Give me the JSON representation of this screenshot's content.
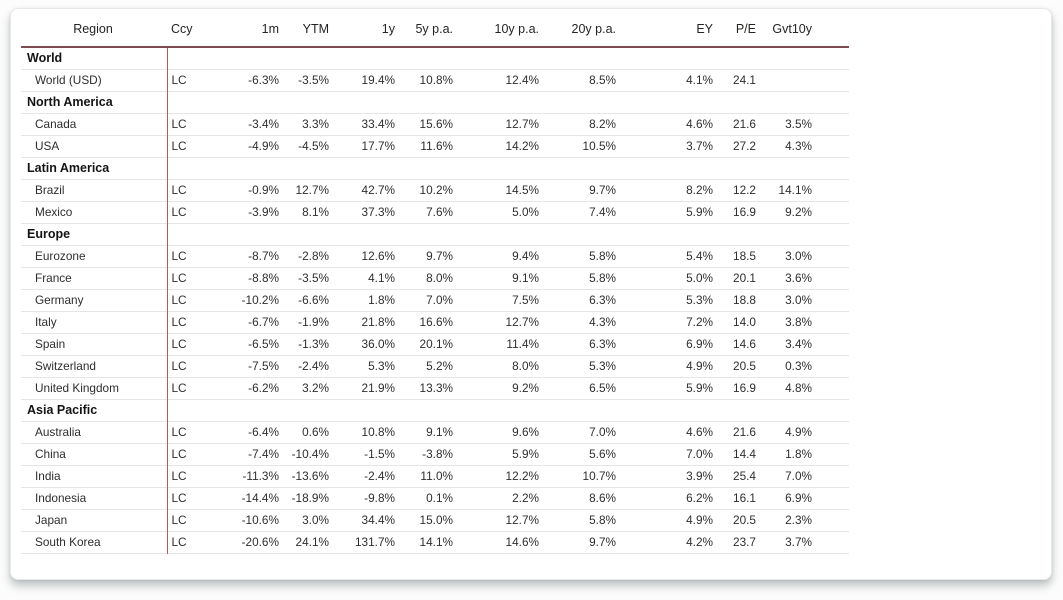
{
  "colors": {
    "header_underline": "#7f4b53",
    "region_divider_line": "#a85e66",
    "row_separator": "#e5e5e5",
    "card_background": "#ffffff"
  },
  "table": {
    "columns": [
      {
        "key": "region",
        "label": "Region"
      },
      {
        "key": "ccy",
        "label": "Ccy"
      },
      {
        "key": "m1",
        "label": "1m"
      },
      {
        "key": "ytm",
        "label": "YTM"
      },
      {
        "key": "y1",
        "label": "1y"
      },
      {
        "key": "y5",
        "label": "5y p.a."
      },
      {
        "key": "y10",
        "label": "10y p.a."
      },
      {
        "key": "y20",
        "label": "20y p.a."
      },
      {
        "key": "ey",
        "label": "EY"
      },
      {
        "key": "pe",
        "label": "P/E"
      },
      {
        "key": "gvt10y",
        "label": "Gvt10y"
      }
    ],
    "sections": [
      {
        "name": "World",
        "rows": [
          {
            "region": "World (USD)",
            "ccy": "LC",
            "m1": "-6.3%",
            "ytm": "-3.5%",
            "y1": "19.4%",
            "y5": "10.8%",
            "y10": "12.4%",
            "y20": "8.5%",
            "ey": "4.1%",
            "pe": "24.1",
            "gvt10y": ""
          }
        ]
      },
      {
        "name": "North America",
        "rows": [
          {
            "region": "Canada",
            "ccy": "LC",
            "m1": "-3.4%",
            "ytm": "3.3%",
            "y1": "33.4%",
            "y5": "15.6%",
            "y10": "12.7%",
            "y20": "8.2%",
            "ey": "4.6%",
            "pe": "21.6",
            "gvt10y": "3.5%"
          },
          {
            "region": "USA",
            "ccy": "LC",
            "m1": "-4.9%",
            "ytm": "-4.5%",
            "y1": "17.7%",
            "y5": "11.6%",
            "y10": "14.2%",
            "y20": "10.5%",
            "ey": "3.7%",
            "pe": "27.2",
            "gvt10y": "4.3%"
          }
        ]
      },
      {
        "name": "Latin America",
        "rows": [
          {
            "region": "Brazil",
            "ccy": "LC",
            "m1": "-0.9%",
            "ytm": "12.7%",
            "y1": "42.7%",
            "y5": "10.2%",
            "y10": "14.5%",
            "y20": "9.7%",
            "ey": "8.2%",
            "pe": "12.2",
            "gvt10y": "14.1%"
          },
          {
            "region": "Mexico",
            "ccy": "LC",
            "m1": "-3.9%",
            "ytm": "8.1%",
            "y1": "37.3%",
            "y5": "7.6%",
            "y10": "5.0%",
            "y20": "7.4%",
            "ey": "5.9%",
            "pe": "16.9",
            "gvt10y": "9.2%"
          }
        ]
      },
      {
        "name": "Europe",
        "rows": [
          {
            "region": "Eurozone",
            "ccy": "LC",
            "m1": "-8.7%",
            "ytm": "-2.8%",
            "y1": "12.6%",
            "y5": "9.7%",
            "y10": "9.4%",
            "y20": "5.8%",
            "ey": "5.4%",
            "pe": "18.5",
            "gvt10y": "3.0%"
          },
          {
            "region": "France",
            "ccy": "LC",
            "m1": "-8.8%",
            "ytm": "-3.5%",
            "y1": "4.1%",
            "y5": "8.0%",
            "y10": "9.1%",
            "y20": "5.8%",
            "ey": "5.0%",
            "pe": "20.1",
            "gvt10y": "3.6%"
          },
          {
            "region": "Germany",
            "ccy": "LC",
            "m1": "-10.2%",
            "ytm": "-6.6%",
            "y1": "1.8%",
            "y5": "7.0%",
            "y10": "7.5%",
            "y20": "6.3%",
            "ey": "5.3%",
            "pe": "18.8",
            "gvt10y": "3.0%"
          },
          {
            "region": "Italy",
            "ccy": "LC",
            "m1": "-6.7%",
            "ytm": "-1.9%",
            "y1": "21.8%",
            "y5": "16.6%",
            "y10": "12.7%",
            "y20": "4.3%",
            "ey": "7.2%",
            "pe": "14.0",
            "gvt10y": "3.8%"
          },
          {
            "region": "Spain",
            "ccy": "LC",
            "m1": "-6.5%",
            "ytm": "-1.3%",
            "y1": "36.0%",
            "y5": "20.1%",
            "y10": "11.4%",
            "y20": "6.3%",
            "ey": "6.9%",
            "pe": "14.6",
            "gvt10y": "3.4%"
          },
          {
            "region": "Switzerland",
            "ccy": "LC",
            "m1": "-7.5%",
            "ytm": "-2.4%",
            "y1": "5.3%",
            "y5": "5.2%",
            "y10": "8.0%",
            "y20": "5.3%",
            "ey": "4.9%",
            "pe": "20.5",
            "gvt10y": "0.3%"
          },
          {
            "region": "United Kingdom",
            "ccy": "LC",
            "m1": "-6.2%",
            "ytm": "3.2%",
            "y1": "21.9%",
            "y5": "13.3%",
            "y10": "9.2%",
            "y20": "6.5%",
            "ey": "5.9%",
            "pe": "16.9",
            "gvt10y": "4.8%"
          }
        ]
      },
      {
        "name": "Asia Pacific",
        "rows": [
          {
            "region": "Australia",
            "ccy": "LC",
            "m1": "-6.4%",
            "ytm": "0.6%",
            "y1": "10.8%",
            "y5": "9.1%",
            "y10": "9.6%",
            "y20": "7.0%",
            "ey": "4.6%",
            "pe": "21.6",
            "gvt10y": "4.9%"
          },
          {
            "region": "China",
            "ccy": "LC",
            "m1": "-7.4%",
            "ytm": "-10.4%",
            "y1": "-1.5%",
            "y5": "-3.8%",
            "y10": "5.9%",
            "y20": "5.6%",
            "ey": "7.0%",
            "pe": "14.4",
            "gvt10y": "1.8%"
          },
          {
            "region": "India",
            "ccy": "LC",
            "m1": "-11.3%",
            "ytm": "-13.6%",
            "y1": "-2.4%",
            "y5": "11.0%",
            "y10": "12.2%",
            "y20": "10.7%",
            "ey": "3.9%",
            "pe": "25.4",
            "gvt10y": "7.0%"
          },
          {
            "region": "Indonesia",
            "ccy": "LC",
            "m1": "-14.4%",
            "ytm": "-18.9%",
            "y1": "-9.8%",
            "y5": "0.1%",
            "y10": "2.2%",
            "y20": "8.6%",
            "ey": "6.2%",
            "pe": "16.1",
            "gvt10y": "6.9%"
          },
          {
            "region": "Japan",
            "ccy": "LC",
            "m1": "-10.6%",
            "ytm": "3.0%",
            "y1": "34.4%",
            "y5": "15.0%",
            "y10": "12.7%",
            "y20": "5.8%",
            "ey": "4.9%",
            "pe": "20.5",
            "gvt10y": "2.3%"
          },
          {
            "region": "South Korea",
            "ccy": "LC",
            "m1": "-20.6%",
            "ytm": "24.1%",
            "y1": "131.7%",
            "y5": "14.1%",
            "y10": "14.6%",
            "y20": "9.7%",
            "ey": "4.2%",
            "pe": "23.7",
            "gvt10y": "3.7%"
          }
        ]
      }
    ]
  }
}
